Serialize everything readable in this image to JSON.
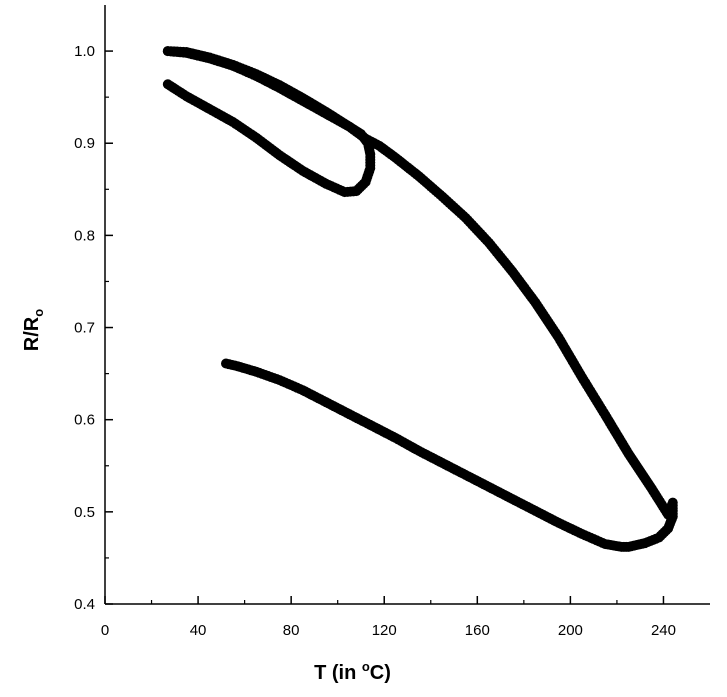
{
  "chart_data": {
    "type": "scatter",
    "title": "",
    "xlabel": {
      "prefix": "T (in ",
      "superscript": "o",
      "suffix": "C)"
    },
    "ylabel": {
      "main": "R/R",
      "subscript": "o"
    },
    "xlim": [
      0,
      260
    ],
    "ylim": [
      0.4,
      1.05
    ],
    "x_ticks": [
      "0",
      "40",
      "80",
      "120",
      "160",
      "200",
      "240"
    ],
    "x_tick_values": [
      0,
      40,
      80,
      120,
      160,
      200,
      240
    ],
    "y_ticks": [
      "0.4",
      "0.5",
      "0.6",
      "0.7",
      "0.8",
      "0.9",
      "1.0"
    ],
    "y_tick_values": [
      0.4,
      0.5,
      0.6,
      0.7,
      0.8,
      0.9,
      1.0
    ],
    "grid": false,
    "legend": "none",
    "marker_color": "#000000",
    "series": [
      {
        "points": [
          [
            27,
            1.0
          ],
          [
            35,
            0.999
          ],
          [
            45,
            0.993
          ],
          [
            55,
            0.985
          ],
          [
            65,
            0.975
          ],
          [
            75,
            0.963
          ],
          [
            85,
            0.949
          ],
          [
            95,
            0.934
          ],
          [
            105,
            0.918
          ],
          [
            112,
            0.905
          ],
          [
            118,
            0.897
          ],
          [
            125,
            0.884
          ],
          [
            135,
            0.864
          ],
          [
            145,
            0.842
          ],
          [
            155,
            0.819
          ],
          [
            165,
            0.792
          ],
          [
            175,
            0.761
          ],
          [
            185,
            0.727
          ],
          [
            195,
            0.689
          ],
          [
            205,
            0.646
          ],
          [
            215,
            0.605
          ],
          [
            225,
            0.563
          ],
          [
            235,
            0.525
          ],
          [
            242,
            0.497
          ],
          [
            244,
            0.51
          ],
          [
            244,
            0.495
          ],
          [
            242,
            0.482
          ],
          [
            238,
            0.472
          ],
          [
            232,
            0.466
          ],
          [
            225,
            0.462
          ],
          [
            222,
            0.462
          ],
          [
            215,
            0.465
          ],
          [
            205,
            0.476
          ],
          [
            195,
            0.488
          ],
          [
            185,
            0.501
          ],
          [
            175,
            0.514
          ],
          [
            165,
            0.527
          ],
          [
            155,
            0.54
          ],
          [
            145,
            0.553
          ],
          [
            135,
            0.566
          ],
          [
            125,
            0.58
          ],
          [
            115,
            0.593
          ],
          [
            105,
            0.606
          ],
          [
            95,
            0.619
          ],
          [
            85,
            0.632
          ],
          [
            75,
            0.643
          ],
          [
            65,
            0.652
          ],
          [
            57,
            0.658
          ],
          [
            52,
            0.661
          ]
        ]
      },
      {
        "points": [
          [
            27,
            0.964
          ],
          [
            35,
            0.951
          ],
          [
            45,
            0.937
          ],
          [
            55,
            0.923
          ],
          [
            65,
            0.906
          ],
          [
            75,
            0.887
          ],
          [
            85,
            0.87
          ],
          [
            95,
            0.856
          ],
          [
            103,
            0.847
          ],
          [
            108,
            0.848
          ],
          [
            112,
            0.858
          ],
          [
            114,
            0.873
          ],
          [
            114,
            0.888
          ],
          [
            113,
            0.9
          ],
          [
            110,
            0.91
          ],
          [
            105,
            0.918
          ],
          [
            95,
            0.932
          ],
          [
            85,
            0.946
          ],
          [
            75,
            0.96
          ],
          [
            65,
            0.973
          ],
          [
            55,
            0.984
          ],
          [
            45,
            0.992
          ],
          [
            35,
            0.998
          ],
          [
            27,
            1.0
          ]
        ]
      }
    ]
  }
}
